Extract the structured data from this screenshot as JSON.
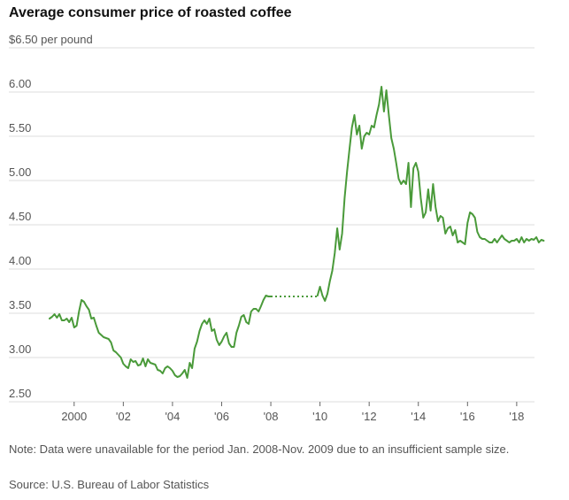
{
  "title": "Average consumer price of roasted coffee",
  "note": "Note: Data were unavailable for the period Jan. 2008-Nov. 2009 due to an insufficient sample size.",
  "source": "Source: U.S. Bureau of Labor Statistics",
  "chart_data": {
    "type": "line",
    "title": "Average consumer price of roasted coffee",
    "ylabel_top": "$6.50 per pound",
    "ylim": [
      2.5,
      6.5
    ],
    "xlim": [
      1999.0,
      2019.3
    ],
    "grid": true,
    "line_color": "#4a9a3a",
    "y_ticks": [
      {
        "value": 6.5,
        "label": "$6.50 per pound"
      },
      {
        "value": 6.0,
        "label": "6.00"
      },
      {
        "value": 5.5,
        "label": "5.50"
      },
      {
        "value": 5.0,
        "label": "5.00"
      },
      {
        "value": 4.5,
        "label": "4.50"
      },
      {
        "value": 4.0,
        "label": "4.00"
      },
      {
        "value": 3.5,
        "label": "3.50"
      },
      {
        "value": 3.0,
        "label": "3.00"
      },
      {
        "value": 2.5,
        "label": "2.50"
      }
    ],
    "x_ticks": [
      {
        "value": 2000,
        "label": "2000"
      },
      {
        "value": 2002,
        "label": "'02"
      },
      {
        "value": 2004,
        "label": "'04"
      },
      {
        "value": 2006,
        "label": "'06"
      },
      {
        "value": 2008,
        "label": "'08"
      },
      {
        "value": 2010,
        "label": "'10"
      },
      {
        "value": 2012,
        "label": "'12"
      },
      {
        "value": 2014,
        "label": "'14"
      },
      {
        "value": 2016,
        "label": "'16"
      },
      {
        "value": 2018,
        "label": "'18"
      }
    ],
    "series": [
      {
        "segment": "before-gap",
        "x": [
          1999.0,
          1999.1,
          1999.2,
          1999.3,
          1999.4,
          1999.5,
          1999.6,
          1999.7,
          1999.8,
          1999.9,
          2000.0,
          2000.1,
          2000.2,
          2000.3,
          2000.4,
          2000.5,
          2000.6,
          2000.7,
          2000.8,
          2000.9,
          2001.0,
          2001.2,
          2001.4,
          2001.5,
          2001.6,
          2001.7,
          2001.8,
          2001.9,
          2002.0,
          2002.1,
          2002.2,
          2002.3,
          2002.4,
          2002.5,
          2002.6,
          2002.7,
          2002.8,
          2002.9,
          2003.0,
          2003.1,
          2003.2,
          2003.3,
          2003.4,
          2003.5,
          2003.6,
          2003.7,
          2003.8,
          2003.9,
          2004.0,
          2004.1,
          2004.2,
          2004.3,
          2004.4,
          2004.5,
          2004.6,
          2004.7,
          2004.8,
          2004.9,
          2005.0,
          2005.1,
          2005.2,
          2005.3,
          2005.4,
          2005.5,
          2005.6,
          2005.7,
          2005.8,
          2005.9,
          2006.0,
          2006.1,
          2006.2,
          2006.3,
          2006.4,
          2006.5,
          2006.6,
          2006.7,
          2006.8,
          2006.9,
          2007.0,
          2007.1,
          2007.2,
          2007.3,
          2007.4,
          2007.5,
          2007.6,
          2007.7,
          2007.8,
          2007.9,
          2008.0
        ],
        "y": [
          3.44,
          3.46,
          3.49,
          3.45,
          3.49,
          3.42,
          3.42,
          3.44,
          3.4,
          3.45,
          3.34,
          3.36,
          3.52,
          3.65,
          3.63,
          3.58,
          3.54,
          3.44,
          3.45,
          3.36,
          3.28,
          3.23,
          3.21,
          3.17,
          3.08,
          3.06,
          3.03,
          3.0,
          2.93,
          2.9,
          2.88,
          2.98,
          2.95,
          2.96,
          2.91,
          2.92,
          2.99,
          2.9,
          2.98,
          2.94,
          2.93,
          2.92,
          2.86,
          2.85,
          2.82,
          2.88,
          2.9,
          2.88,
          2.85,
          2.8,
          2.78,
          2.79,
          2.82,
          2.86,
          2.77,
          2.94,
          2.88,
          3.1,
          3.18,
          3.3,
          3.38,
          3.42,
          3.38,
          3.44,
          3.3,
          3.32,
          3.2,
          3.14,
          3.18,
          3.24,
          3.28,
          3.16,
          3.12,
          3.12,
          3.28,
          3.36,
          3.46,
          3.48,
          3.4,
          3.38,
          3.52,
          3.55,
          3.55,
          3.52,
          3.58,
          3.65,
          3.7,
          3.69,
          3.69
        ]
      },
      {
        "segment": "gap-dotted",
        "x": [
          2008.0,
          2009.9
        ],
        "y": [
          3.69,
          3.69
        ]
      },
      {
        "segment": "after-gap",
        "x": [
          2009.9,
          2010.0,
          2010.1,
          2010.2,
          2010.3,
          2010.4,
          2010.5,
          2010.6,
          2010.7,
          2010.8,
          2010.9,
          2011.0,
          2011.1,
          2011.2,
          2011.3,
          2011.4,
          2011.5,
          2011.6,
          2011.7,
          2011.8,
          2011.9,
          2012.0,
          2012.1,
          2012.2,
          2012.3,
          2012.4,
          2012.5,
          2012.6,
          2012.7,
          2012.8,
          2012.9,
          2013.0,
          2013.1,
          2013.2,
          2013.3,
          2013.4,
          2013.5,
          2013.6,
          2013.7,
          2013.8,
          2013.9,
          2014.0,
          2014.1,
          2014.2,
          2014.3,
          2014.4,
          2014.5,
          2014.6,
          2014.7,
          2014.8,
          2014.9,
          2015.0,
          2015.1,
          2015.2,
          2015.3,
          2015.4,
          2015.5,
          2015.6,
          2015.7,
          2015.8,
          2015.9,
          2016.0,
          2016.1,
          2016.2,
          2016.3,
          2016.4,
          2016.5,
          2016.6,
          2016.7,
          2016.8,
          2016.9,
          2017.0,
          2017.1,
          2017.2,
          2017.3,
          2017.4,
          2017.5,
          2017.6,
          2017.7,
          2017.8,
          2017.9,
          2018.0,
          2018.1,
          2018.2,
          2018.3,
          2018.4,
          2018.5,
          2018.6,
          2018.7,
          2018.8,
          2018.9,
          2019.0,
          2019.1
        ],
        "y": [
          3.7,
          3.8,
          3.7,
          3.64,
          3.72,
          3.86,
          3.98,
          4.18,
          4.46,
          4.22,
          4.4,
          4.8,
          5.1,
          5.36,
          5.6,
          5.74,
          5.52,
          5.62,
          5.36,
          5.5,
          5.54,
          5.52,
          5.62,
          5.6,
          5.74,
          5.86,
          6.06,
          5.78,
          6.02,
          5.74,
          5.48,
          5.36,
          5.2,
          5.02,
          4.96,
          5.0,
          4.96,
          5.2,
          4.7,
          5.14,
          5.2,
          5.1,
          4.8,
          4.58,
          4.64,
          4.9,
          4.66,
          4.96,
          4.7,
          4.54,
          4.6,
          4.58,
          4.4,
          4.46,
          4.48,
          4.38,
          4.44,
          4.3,
          4.32,
          4.3,
          4.28,
          4.52,
          4.64,
          4.62,
          4.58,
          4.42,
          4.36,
          4.34,
          4.34,
          4.32,
          4.3,
          4.3,
          4.34,
          4.3,
          4.34,
          4.38,
          4.34,
          4.32,
          4.3,
          4.32,
          4.32,
          4.34,
          4.3,
          4.36,
          4.3,
          4.34,
          4.32,
          4.34,
          4.33,
          4.36,
          4.3,
          4.33,
          4.32
        ]
      }
    ]
  }
}
